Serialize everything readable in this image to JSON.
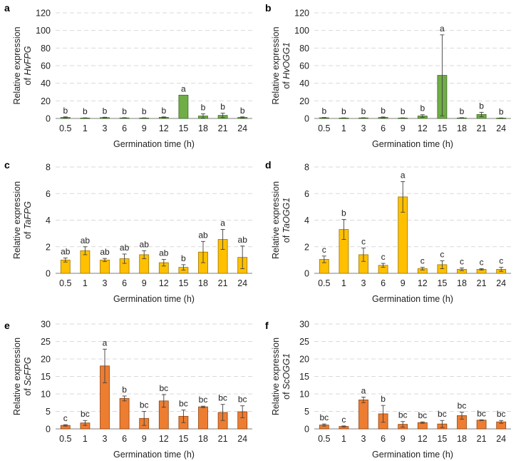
{
  "chart_data": [
    {
      "panel": "a",
      "type": "bar",
      "categories": [
        "0.5",
        "1",
        "3",
        "6",
        "9",
        "12",
        "15",
        "18",
        "21",
        "24"
      ],
      "values": [
        1.2,
        0.5,
        1.0,
        0.6,
        0.5,
        1.3,
        26.5,
        2.8,
        3.5,
        1.2
      ],
      "errors": [
        0.6,
        0.2,
        0.4,
        0.3,
        0.2,
        0.5,
        0,
        2.4,
        2.5,
        0.6
      ],
      "letters": [
        "b",
        "b",
        "b",
        "b",
        "b",
        "b",
        "a",
        "b",
        "b",
        "b"
      ],
      "ylabel_line1": "Relative expression",
      "ylabel_prefix": "of ",
      "ylabel_gene": "HvFPG",
      "xlabel": "Germination time (h)",
      "ylim": [
        0,
        120
      ],
      "yticks": [
        0,
        20,
        40,
        60,
        80,
        100,
        120
      ],
      "color": "#70ad47",
      "edge": "#3d6a22"
    },
    {
      "panel": "b",
      "type": "bar",
      "categories": [
        "0.5",
        "1",
        "3",
        "6",
        "9",
        "12",
        "15",
        "18",
        "21",
        "24"
      ],
      "values": [
        0.8,
        0.5,
        0.6,
        1.2,
        0.5,
        2.8,
        49,
        0.6,
        4.5,
        0.4
      ],
      "errors": [
        0.3,
        0.2,
        0.2,
        0.5,
        0.2,
        1.5,
        46,
        0.3,
        2.5,
        0.2
      ],
      "letters": [
        "b",
        "b",
        "b",
        "b",
        "b",
        "b",
        "a",
        "b",
        "b",
        "b"
      ],
      "ylabel_line1": "Relative expression",
      "ylabel_prefix": "of ",
      "ylabel_gene": "HvOGG1",
      "xlabel": "Germination time (h)",
      "ylim": [
        0,
        120
      ],
      "yticks": [
        0,
        20,
        40,
        60,
        80,
        100,
        120
      ],
      "color": "#70ad47",
      "edge": "#3d6a22"
    },
    {
      "panel": "c",
      "type": "bar",
      "categories": [
        "0.5",
        "1",
        "3",
        "6",
        "9",
        "12",
        "15",
        "18",
        "21",
        "24"
      ],
      "values": [
        1.0,
        1.7,
        1.0,
        1.1,
        1.4,
        0.8,
        0.45,
        1.6,
        2.55,
        1.2
      ],
      "errors": [
        0.15,
        0.3,
        0.12,
        0.35,
        0.3,
        0.25,
        0.2,
        0.8,
        0.75,
        0.85
      ],
      "letters": [
        "ab",
        "ab",
        "ab",
        "ab",
        "ab",
        "ab",
        "b",
        "ab",
        "a",
        "ab"
      ],
      "ylabel_line1": "Relative expression",
      "ylabel_prefix": "of ",
      "ylabel_gene": "TaFPG",
      "xlabel": "Germination time (h)",
      "ylim": [
        0,
        8
      ],
      "yticks": [
        0,
        2,
        4,
        6,
        8
      ],
      "color": "#ffc000",
      "edge": "#9c7500"
    },
    {
      "panel": "d",
      "type": "bar",
      "categories": [
        "0.5",
        "1",
        "3",
        "6",
        "9",
        "12",
        "15",
        "18",
        "21",
        "24"
      ],
      "values": [
        1.05,
        3.3,
        1.4,
        0.6,
        5.75,
        0.35,
        0.65,
        0.3,
        0.3,
        0.3
      ],
      "errors": [
        0.25,
        0.75,
        0.5,
        0.15,
        1.15,
        0.1,
        0.3,
        0.1,
        0.05,
        0.15
      ],
      "letters": [
        "c",
        "b",
        "c",
        "c",
        "a",
        "c",
        "c",
        "c",
        "c",
        "c"
      ],
      "ylabel_line1": "Relative expression",
      "ylabel_prefix": "of ",
      "ylabel_gene": "TaOGG1",
      "xlabel": "Germination time (h)",
      "ylim": [
        0,
        8
      ],
      "yticks": [
        0,
        2,
        4,
        6,
        8
      ],
      "color": "#ffc000",
      "edge": "#9c7500"
    },
    {
      "panel": "e",
      "type": "bar",
      "categories": [
        "0.5",
        "1",
        "3",
        "6",
        "9",
        "12",
        "15",
        "18",
        "21",
        "24"
      ],
      "values": [
        1.0,
        1.7,
        18.0,
        8.7,
        3.0,
        8.0,
        3.6,
        6.3,
        4.7,
        4.9
      ],
      "errors": [
        0.2,
        0.7,
        4.8,
        0.7,
        2.0,
        1.8,
        1.8,
        0.2,
        2.3,
        1.7
      ],
      "letters": [
        "c",
        "bc",
        "a",
        "b",
        "bc",
        "bc",
        "bc",
        "bc",
        "bc",
        "bc"
      ],
      "ylabel_line1": "Relative expression",
      "ylabel_prefix": "of ",
      "ylabel_gene": "ScFPG",
      "xlabel": "Germination time (h)",
      "ylim": [
        0,
        30
      ],
      "yticks": [
        0,
        5,
        10,
        15,
        20,
        25,
        30
      ],
      "color": "#ed7d31",
      "edge": "#8f4412"
    },
    {
      "panel": "f",
      "type": "bar",
      "categories": [
        "0.5",
        "1",
        "3",
        "6",
        "9",
        "12",
        "15",
        "18",
        "21",
        "24"
      ],
      "values": [
        1.1,
        0.7,
        8.3,
        4.3,
        1.3,
        1.8,
        1.4,
        3.8,
        2.5,
        2.0
      ],
      "errors": [
        0.3,
        0.15,
        0.8,
        2.4,
        0.8,
        0.2,
        1.0,
        1.0,
        0.1,
        0.4
      ],
      "letters": [
        "bc",
        "c",
        "a",
        "b",
        "bc",
        "bc",
        "bc",
        "bc",
        "bc",
        "bc"
      ],
      "ylabel_line1": "Relative expression",
      "ylabel_prefix": "of ",
      "ylabel_gene": "ScOGG1",
      "xlabel": "Germination time (h)",
      "ylim": [
        0,
        30
      ],
      "yticks": [
        0,
        5,
        10,
        15,
        20,
        25,
        30
      ],
      "color": "#ed7d31",
      "edge": "#8f4412"
    }
  ]
}
